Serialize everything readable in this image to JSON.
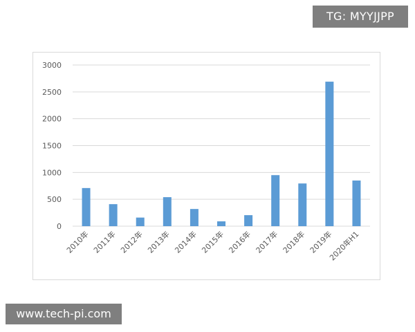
{
  "watermarks": {
    "top": "TG: MYYJJPP",
    "bottom": "www.tech-pi.com"
  },
  "chart_data": {
    "type": "bar",
    "title": "",
    "xlabel": "",
    "ylabel": "",
    "categories": [
      "2010年",
      "2011年",
      "2012年",
      "2013年",
      "2014年",
      "2015年",
      "2016年",
      "2017年",
      "2018年",
      "2019年",
      "2020年H1"
    ],
    "values": [
      710,
      410,
      160,
      540,
      320,
      90,
      205,
      950,
      795,
      2690,
      850
    ],
    "ylim": [
      0,
      3000
    ],
    "yticks": [
      0,
      500,
      1000,
      1500,
      2000,
      2500,
      3000
    ],
    "grid": true,
    "legend": "none",
    "bar_color": "#5b9bd5",
    "grid_color": "#d9d9d9"
  }
}
